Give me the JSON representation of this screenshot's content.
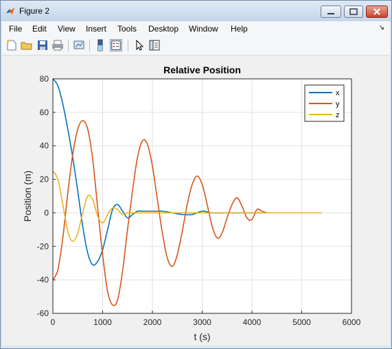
{
  "window": {
    "title": "Figure 2"
  },
  "menu": {
    "items": [
      "File",
      "Edit",
      "View",
      "Insert",
      "Tools",
      "Desktop",
      "Window",
      "Help"
    ],
    "arrow": "↘"
  },
  "toolbar": {
    "buttons": [
      "new-figure-icon",
      "open-file-icon",
      "save-icon",
      "print-icon",
      "link-plot-icon",
      "colorbar-icon",
      "legend-icon",
      "pointer-icon",
      "property-inspector-icon"
    ]
  },
  "chart_data": {
    "type": "line",
    "title": "Relative Position",
    "xlabel": "t (s)",
    "ylabel": "Position (m)",
    "xlim": [
      0,
      6000
    ],
    "ylim": [
      -60,
      80
    ],
    "xticks": [
      0,
      1000,
      2000,
      3000,
      4000,
      5000,
      6000
    ],
    "yticks": [
      -60,
      -40,
      -20,
      0,
      20,
      40,
      60,
      80
    ],
    "grid": true,
    "legend_position": "top-right",
    "series": [
      {
        "name": "x",
        "color": "#0072bd",
        "x": [
          0,
          100,
          200,
          300,
          400,
          500,
          600,
          700,
          800,
          900,
          1000,
          1100,
          1200,
          1300,
          1400,
          1500,
          1600,
          1700,
          1800,
          1900,
          2000,
          2100,
          2200,
          2400,
          2600,
          2800,
          3000,
          3200,
          3400,
          3600,
          3800,
          4000,
          4200
        ],
        "y": [
          80,
          76,
          65,
          50,
          33,
          13,
          -8,
          -24,
          -31,
          -29,
          -22,
          -10,
          2,
          5,
          1,
          -3,
          -1,
          1,
          1,
          1,
          1,
          1,
          1,
          0,
          -1,
          -1,
          1,
          0,
          0,
          0,
          0,
          0,
          0
        ]
      },
      {
        "name": "y",
        "color": "#d95319",
        "x": [
          0,
          100,
          200,
          300,
          400,
          500,
          600,
          700,
          800,
          900,
          1000,
          1100,
          1200,
          1300,
          1400,
          1500,
          1600,
          1700,
          1800,
          1900,
          2000,
          2100,
          2200,
          2300,
          2400,
          2500,
          2600,
          2700,
          2800,
          2900,
          3000,
          3100,
          3200,
          3300,
          3400,
          3500,
          3600,
          3700,
          3800,
          3900,
          4000,
          4100,
          4200,
          4300
        ],
        "y": [
          -40,
          -34,
          -15,
          12,
          35,
          50,
          55,
          50,
          32,
          3,
          -25,
          -47,
          -55,
          -52,
          -35,
          -10,
          13,
          33,
          43,
          41,
          28,
          8,
          -12,
          -27,
          -32,
          -25,
          -11,
          5,
          17,
          22,
          17,
          5,
          -8,
          -15,
          -12,
          -3,
          5,
          9,
          4,
          -3,
          -4,
          2,
          1,
          0
        ]
      },
      {
        "name": "z",
        "color": "#edb120",
        "x": [
          0,
          100,
          200,
          300,
          400,
          500,
          600,
          700,
          800,
          900,
          1000,
          1100,
          1200,
          1300,
          1400,
          1500,
          1600,
          1800,
          2000,
          2500,
          3000,
          3500,
          4000,
          4500,
          5000,
          5400
        ],
        "y": [
          25,
          20,
          5,
          -11,
          -17,
          -12,
          0,
          10,
          8,
          -2,
          -6,
          -1,
          3,
          2,
          -1,
          0,
          0,
          0,
          0,
          0,
          0,
          0,
          0,
          0,
          0,
          0
        ]
      }
    ]
  }
}
